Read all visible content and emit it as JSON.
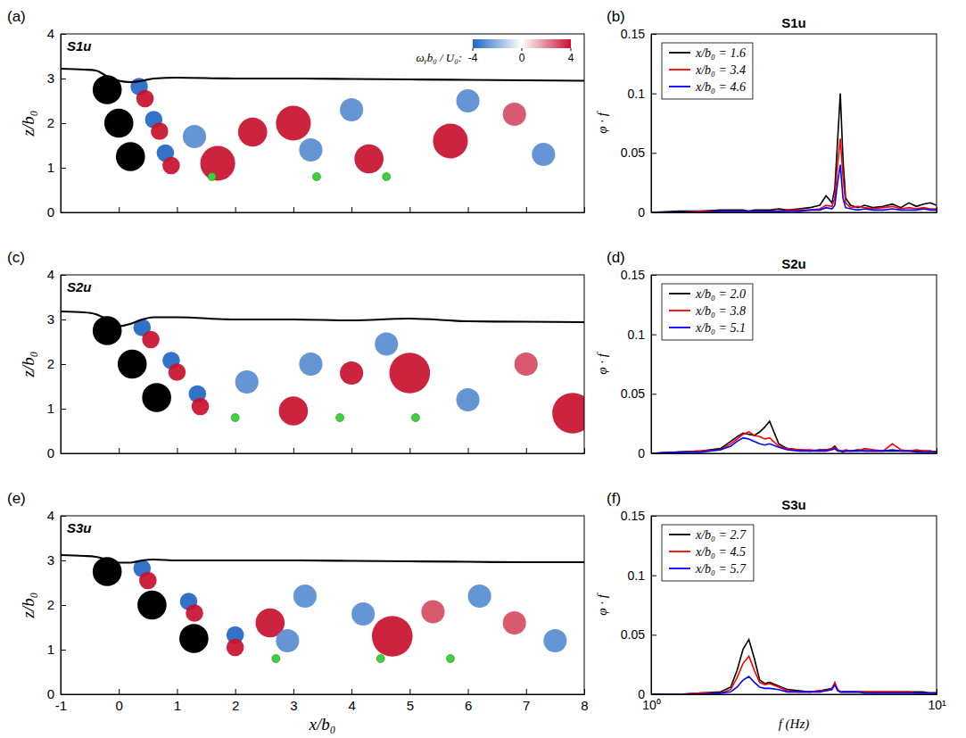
{
  "chart_data": [
    {
      "type": "field",
      "panel_label": "(a)",
      "title": "S1u",
      "ylabel": "z/b₀",
      "xlim": [
        -1,
        8
      ],
      "xticks": [
        -1,
        0,
        1,
        2,
        3,
        4,
        5,
        6,
        7,
        8
      ],
      "ylim": [
        0,
        4
      ],
      "yticks": [
        0,
        1,
        2,
        3,
        4
      ],
      "tick_labels": "y",
      "colorbar": {
        "label": "ωᵧb₀ / U₀:",
        "range": [
          -4,
          4
        ],
        "ticks": [
          -4,
          0,
          4
        ]
      },
      "free_surface": {
        "x": [
          -1,
          -0.6,
          -0.4,
          -0.2,
          0,
          0.2,
          0.4,
          0.6,
          1,
          2,
          3,
          4,
          5,
          6,
          7,
          8
        ],
        "z": [
          3.22,
          3.2,
          3.18,
          3.05,
          2.95,
          2.92,
          2.95,
          3.0,
          3.02,
          3.0,
          3.0,
          2.99,
          2.98,
          2.97,
          2.96,
          2.95
        ]
      },
      "cylinders": [
        {
          "x": -0.2,
          "z": 2.75,
          "r": 0.25
        },
        {
          "x": 0.0,
          "z": 2.0,
          "r": 0.25
        },
        {
          "x": 0.2,
          "z": 1.25,
          "r": 0.25
        }
      ],
      "probes": {
        "x": [
          1.6,
          3.4,
          4.6
        ],
        "z": [
          0.8,
          0.8,
          0.8
        ],
        "color": "#3fd13f"
      },
      "vortices": [
        {
          "x": 0.35,
          "z": 2.82,
          "r": 0.15,
          "omega": -4
        },
        {
          "x": 0.45,
          "z": 2.55,
          "r": 0.15,
          "omega": 4
        },
        {
          "x": 0.6,
          "z": 2.08,
          "r": 0.15,
          "omega": -4
        },
        {
          "x": 0.7,
          "z": 1.82,
          "r": 0.15,
          "omega": 4
        },
        {
          "x": 0.8,
          "z": 1.33,
          "r": 0.15,
          "omega": -4
        },
        {
          "x": 0.9,
          "z": 1.05,
          "r": 0.15,
          "omega": 4
        },
        {
          "x": 1.7,
          "z": 1.1,
          "r": 0.3,
          "omega": 4
        },
        {
          "x": 1.3,
          "z": 1.7,
          "r": 0.2,
          "omega": -3
        },
        {
          "x": 2.3,
          "z": 1.8,
          "r": 0.25,
          "omega": 4
        },
        {
          "x": 3.0,
          "z": 2.0,
          "r": 0.3,
          "omega": 4
        },
        {
          "x": 3.3,
          "z": 1.4,
          "r": 0.2,
          "omega": -3
        },
        {
          "x": 4.3,
          "z": 1.2,
          "r": 0.25,
          "omega": 4
        },
        {
          "x": 4.0,
          "z": 2.3,
          "r": 0.2,
          "omega": -3
        },
        {
          "x": 5.7,
          "z": 1.6,
          "r": 0.3,
          "omega": 4
        },
        {
          "x": 6.0,
          "z": 2.5,
          "r": 0.2,
          "omega": -3
        },
        {
          "x": 6.8,
          "z": 2.2,
          "r": 0.2,
          "omega": 3
        },
        {
          "x": 7.3,
          "z": 1.3,
          "r": 0.2,
          "omega": -3
        }
      ]
    },
    {
      "type": "line",
      "panel_label": "(b)",
      "title": "S1u",
      "ylabel": "φ · f",
      "log": "x",
      "xlim": [
        1,
        10
      ],
      "xticks": [
        {
          "value": 1,
          "label": "10⁰"
        },
        {
          "value": 10,
          "label": "10¹"
        }
      ],
      "ylim": [
        0,
        0.15
      ],
      "yticks": [
        0,
        0.05,
        0.1,
        0.15
      ],
      "tick_labels": "y",
      "legend": "upper left",
      "x": [
        1,
        1.25,
        1.5,
        1.75,
        1.9,
        2.0,
        2.1,
        2.2,
        2.3,
        2.4,
        2.5,
        2.6,
        2.8,
        3.0,
        3.3,
        3.6,
        3.9,
        4.1,
        4.3,
        4.4,
        4.5,
        4.6,
        4.7,
        4.8,
        5.0,
        5.3,
        5.6,
        6,
        6.5,
        7,
        7.5,
        8,
        8.5,
        9,
        9.5,
        10
      ],
      "series": [
        {
          "name": "x/b₀ = 1.6",
          "color": "#000000",
          "values": [
            0,
            0.001,
            0.001,
            0.002,
            0.002,
            0.002,
            0.002,
            0.001,
            0.002,
            0.002,
            0.002,
            0.002,
            0.003,
            0.002,
            0.003,
            0.004,
            0.006,
            0.014,
            0.008,
            0.02,
            0.06,
            0.1,
            0.045,
            0.012,
            0.006,
            0.004,
            0.006,
            0.004,
            0.005,
            0.007,
            0.004,
            0.008,
            0.005,
            0.007,
            0.008,
            0.006
          ]
        },
        {
          "name": "x/b₀ = 3.4",
          "color": "#ff0000",
          "values": [
            0,
            0,
            0.001,
            0.001,
            0.001,
            0.001,
            0.001,
            0.001,
            0.001,
            0.001,
            0.001,
            0.001,
            0.001,
            0.002,
            0.002,
            0.002,
            0.003,
            0.006,
            0.005,
            0.012,
            0.04,
            0.062,
            0.03,
            0.008,
            0.004,
            0.005,
            0.004,
            0.003,
            0.004,
            0.005,
            0.003,
            0.004,
            0.003,
            0.004,
            0.003,
            0.003
          ]
        },
        {
          "name": "x/b₀ = 4.6",
          "color": "#0000ff",
          "values": [
            0,
            0,
            0,
            0.001,
            0.001,
            0.001,
            0.001,
            0.001,
            0.001,
            0.001,
            0.001,
            0.001,
            0.001,
            0.001,
            0.001,
            0.002,
            0.002,
            0.004,
            0.003,
            0.006,
            0.025,
            0.04,
            0.012,
            0.004,
            0.003,
            0.002,
            0.003,
            0.002,
            0.002,
            0.003,
            0.002,
            0.002,
            0.002,
            0.003,
            0.002,
            0.002
          ]
        }
      ]
    },
    {
      "type": "field",
      "panel_label": "(c)",
      "title": "S2u",
      "ylabel": "z/b₀",
      "xlim": [
        -1,
        8
      ],
      "xticks": [
        -1,
        0,
        1,
        2,
        3,
        4,
        5,
        6,
        7,
        8
      ],
      "ylim": [
        0,
        4
      ],
      "yticks": [
        0,
        1,
        2,
        3,
        4
      ],
      "tick_labels": "y",
      "free_surface": {
        "x": [
          -1,
          -0.6,
          -0.4,
          -0.2,
          0,
          0.2,
          0.4,
          0.6,
          1,
          2,
          3,
          4,
          5,
          6,
          7,
          8
        ],
        "z": [
          3.18,
          3.16,
          3.12,
          3.0,
          2.85,
          2.9,
          3.0,
          3.05,
          3.05,
          3.0,
          3.0,
          2.98,
          3.02,
          2.96,
          2.95,
          2.94
        ]
      },
      "cylinders": [
        {
          "x": -0.2,
          "z": 2.75,
          "r": 0.25
        },
        {
          "x": 0.23,
          "z": 2.0,
          "r": 0.25
        },
        {
          "x": 0.65,
          "z": 1.25,
          "r": 0.25
        }
      ],
      "probes": {
        "x": [
          2.0,
          3.8,
          5.1
        ],
        "z": [
          0.8,
          0.8,
          0.8
        ],
        "color": "#3fd13f"
      },
      "vortices": [
        {
          "x": 0.4,
          "z": 2.82,
          "r": 0.15,
          "omega": -4
        },
        {
          "x": 0.55,
          "z": 2.55,
          "r": 0.15,
          "omega": 4
        },
        {
          "x": 0.9,
          "z": 2.08,
          "r": 0.15,
          "omega": -4
        },
        {
          "x": 1.0,
          "z": 1.82,
          "r": 0.15,
          "omega": 4
        },
        {
          "x": 1.35,
          "z": 1.33,
          "r": 0.15,
          "omega": -4
        },
        {
          "x": 1.4,
          "z": 1.05,
          "r": 0.15,
          "omega": 4
        },
        {
          "x": 2.2,
          "z": 1.6,
          "r": 0.2,
          "omega": -3
        },
        {
          "x": 3.0,
          "z": 0.95,
          "r": 0.25,
          "omega": 4
        },
        {
          "x": 3.3,
          "z": 2.0,
          "r": 0.2,
          "omega": -3
        },
        {
          "x": 4.0,
          "z": 1.8,
          "r": 0.2,
          "omega": 4
        },
        {
          "x": 5.0,
          "z": 1.8,
          "r": 0.35,
          "omega": 4
        },
        {
          "x": 4.6,
          "z": 2.45,
          "r": 0.2,
          "omega": -3
        },
        {
          "x": 6.0,
          "z": 1.2,
          "r": 0.2,
          "omega": -3
        },
        {
          "x": 7.0,
          "z": 2.0,
          "r": 0.2,
          "omega": 3
        },
        {
          "x": 7.8,
          "z": 0.9,
          "r": 0.35,
          "omega": 4
        }
      ]
    },
    {
      "type": "line",
      "panel_label": "(d)",
      "title": "S2u",
      "ylabel": "φ · f",
      "log": "x",
      "xlim": [
        1,
        10
      ],
      "xticks": [
        {
          "value": 1,
          "label": "10⁰"
        },
        {
          "value": 10,
          "label": "10¹"
        }
      ],
      "ylim": [
        0,
        0.15
      ],
      "yticks": [
        0,
        0.05,
        0.1,
        0.15
      ],
      "tick_labels": "y",
      "legend": "upper left",
      "x": [
        1,
        1.25,
        1.5,
        1.75,
        1.9,
        2.0,
        2.1,
        2.2,
        2.3,
        2.4,
        2.5,
        2.6,
        2.8,
        3.0,
        3.3,
        3.6,
        3.9,
        4.1,
        4.3,
        4.4,
        4.5,
        4.6,
        4.7,
        4.8,
        5.0,
        5.3,
        5.6,
        6,
        6.5,
        7,
        7.5,
        8,
        8.5,
        9,
        9.5,
        10
      ],
      "series": [
        {
          "name": "x/b₀ = 2.0",
          "color": "#000000",
          "values": [
            0,
            0.001,
            0.002,
            0.004,
            0.01,
            0.014,
            0.017,
            0.016,
            0.015,
            0.018,
            0.022,
            0.027,
            0.008,
            0.004,
            0.003,
            0.002,
            0.003,
            0.003,
            0.004,
            0.006,
            0.003,
            0.002,
            0.002,
            0.002,
            0.002,
            0.003,
            0.002,
            0.002,
            0.002,
            0.002,
            0.002,
            0.002,
            0.002,
            0.002,
            0.002,
            0.001
          ]
        },
        {
          "name": "x/b₀ = 3.8",
          "color": "#ff0000",
          "values": [
            0,
            0.001,
            0.002,
            0.003,
            0.008,
            0.012,
            0.016,
            0.018,
            0.015,
            0.014,
            0.012,
            0.013,
            0.006,
            0.004,
            0.003,
            0.003,
            0.002,
            0.003,
            0.004,
            0.005,
            0.003,
            0.002,
            0.002,
            0.003,
            0.002,
            0.002,
            0.004,
            0.003,
            0.002,
            0.008,
            0.003,
            0.002,
            0.003,
            0.002,
            0.002,
            0.001
          ]
        },
        {
          "name": "x/b₀ = 5.1",
          "color": "#0000ff",
          "values": [
            0,
            0.001,
            0.001,
            0.003,
            0.006,
            0.01,
            0.013,
            0.012,
            0.01,
            0.008,
            0.007,
            0.008,
            0.005,
            0.003,
            0.002,
            0.002,
            0.002,
            0.002,
            0.003,
            0.004,
            0.002,
            0.002,
            0.001,
            0.002,
            0.002,
            0.002,
            0.002,
            0.002,
            0.002,
            0.003,
            0.002,
            0.002,
            0.001,
            0.001,
            0.001,
            0.001
          ]
        }
      ]
    },
    {
      "type": "field",
      "panel_label": "(e)",
      "title": "S3u",
      "xlabel": "x/b₀",
      "ylabel": "z/b₀",
      "xlim": [
        -1,
        8
      ],
      "xticks": [
        -1,
        0,
        1,
        2,
        3,
        4,
        5,
        6,
        7,
        8
      ],
      "ylim": [
        0,
        4
      ],
      "yticks": [
        0,
        1,
        2,
        3,
        4
      ],
      "free_surface": {
        "x": [
          -1,
          -0.6,
          -0.4,
          -0.2,
          0,
          0.2,
          0.4,
          0.6,
          1,
          2,
          3,
          4,
          5,
          6,
          7,
          8
        ],
        "z": [
          3.12,
          3.1,
          3.08,
          3.02,
          2.95,
          2.95,
          3.0,
          3.02,
          3.0,
          3.0,
          3.0,
          2.99,
          2.98,
          2.97,
          2.96,
          2.96
        ]
      },
      "cylinders": [
        {
          "x": -0.2,
          "z": 2.75,
          "r": 0.25
        },
        {
          "x": 0.57,
          "z": 2.0,
          "r": 0.25
        },
        {
          "x": 1.29,
          "z": 1.25,
          "r": 0.25
        }
      ],
      "probes": {
        "x": [
          2.7,
          4.5,
          5.7
        ],
        "z": [
          0.8,
          0.8,
          0.8
        ],
        "color": "#3fd13f"
      },
      "vortices": [
        {
          "x": 0.4,
          "z": 2.82,
          "r": 0.15,
          "omega": -4
        },
        {
          "x": 0.5,
          "z": 2.55,
          "r": 0.15,
          "omega": 4
        },
        {
          "x": 1.2,
          "z": 2.08,
          "r": 0.15,
          "omega": -4
        },
        {
          "x": 1.3,
          "z": 1.82,
          "r": 0.15,
          "omega": 4
        },
        {
          "x": 2.0,
          "z": 1.33,
          "r": 0.15,
          "omega": -4
        },
        {
          "x": 2.0,
          "z": 1.05,
          "r": 0.15,
          "omega": 4
        },
        {
          "x": 2.6,
          "z": 1.6,
          "r": 0.25,
          "omega": 4
        },
        {
          "x": 3.2,
          "z": 2.2,
          "r": 0.2,
          "omega": -3
        },
        {
          "x": 2.9,
          "z": 1.2,
          "r": 0.2,
          "omega": -3
        },
        {
          "x": 4.7,
          "z": 1.3,
          "r": 0.35,
          "omega": 4
        },
        {
          "x": 4.2,
          "z": 1.8,
          "r": 0.2,
          "omega": -3
        },
        {
          "x": 5.4,
          "z": 1.85,
          "r": 0.2,
          "omega": 3
        },
        {
          "x": 6.2,
          "z": 2.2,
          "r": 0.2,
          "omega": -3
        },
        {
          "x": 6.8,
          "z": 1.6,
          "r": 0.2,
          "omega": 3
        },
        {
          "x": 7.5,
          "z": 1.2,
          "r": 0.2,
          "omega": -3
        }
      ]
    },
    {
      "type": "line",
      "panel_label": "(f)",
      "title": "S3u",
      "xlabel": "f (Hz)",
      "ylabel": "φ · f",
      "log": "x",
      "xlim": [
        1,
        10
      ],
      "xticks": [
        {
          "value": 1,
          "label": "10⁰"
        },
        {
          "value": 10,
          "label": "10¹"
        }
      ],
      "ylim": [
        0,
        0.15
      ],
      "yticks": [
        0,
        0.05,
        0.1,
        0.15
      ],
      "legend": "upper left",
      "x": [
        1,
        1.25,
        1.5,
        1.75,
        1.9,
        2.0,
        2.1,
        2.2,
        2.3,
        2.4,
        2.5,
        2.6,
        2.8,
        3.0,
        3.3,
        3.6,
        3.9,
        4.1,
        4.3,
        4.4,
        4.5,
        4.6,
        4.7,
        4.8,
        5.0,
        5.3,
        5.6,
        6,
        6.5,
        7,
        7.5,
        8,
        8.5,
        9,
        9.5,
        10
      ],
      "series": [
        {
          "name": "x/b₀ = 2.7",
          "color": "#000000",
          "values": [
            0,
            0,
            0.001,
            0.002,
            0.006,
            0.02,
            0.038,
            0.046,
            0.03,
            0.012,
            0.009,
            0.01,
            0.007,
            0.004,
            0.003,
            0.002,
            0.003,
            0.004,
            0.005,
            0.009,
            0.004,
            0.002,
            0.002,
            0.002,
            0.002,
            0.002,
            0.002,
            0.002,
            0.002,
            0.002,
            0.002,
            0.002,
            0.002,
            0.002,
            0.001,
            0.001
          ]
        },
        {
          "name": "x/b₀ = 4.5",
          "color": "#ff0000",
          "values": [
            0,
            0,
            0.001,
            0.001,
            0.004,
            0.014,
            0.026,
            0.032,
            0.02,
            0.01,
            0.008,
            0.009,
            0.006,
            0.003,
            0.002,
            0.002,
            0.003,
            0.003,
            0.005,
            0.01,
            0.004,
            0.002,
            0.002,
            0.002,
            0.002,
            0.002,
            0.002,
            0.002,
            0.002,
            0.002,
            0.002,
            0.002,
            0.001,
            0.001,
            0.001,
            0.001
          ]
        },
        {
          "name": "x/b₀ = 5.7",
          "color": "#0000ff",
          "values": [
            0,
            0,
            0,
            0.001,
            0.002,
            0.006,
            0.012,
            0.015,
            0.01,
            0.006,
            0.005,
            0.005,
            0.004,
            0.002,
            0.002,
            0.002,
            0.002,
            0.003,
            0.004,
            0.008,
            0.003,
            0.002,
            0.002,
            0.002,
            0.002,
            0.002,
            0.001,
            0.001,
            0.001,
            0.001,
            0.001,
            0.001,
            0.001,
            0.001,
            0.001,
            0.001
          ]
        }
      ]
    }
  ]
}
